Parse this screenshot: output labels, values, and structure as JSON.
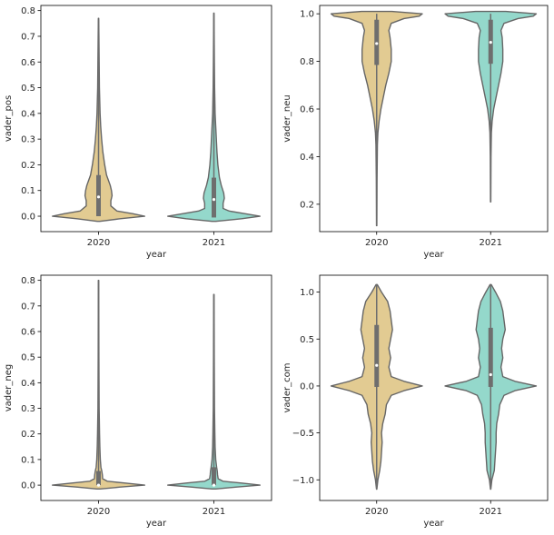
{
  "colors": {
    "series_2020": "#e2cb92",
    "series_2021": "#94d8cb",
    "outline": "#666666",
    "box": "#6e6e6e",
    "median": "#ffffff"
  },
  "chart_data": [
    {
      "type": "violin",
      "xlabel": "year",
      "ylabel": "vader_pos",
      "categories": [
        "2020",
        "2021"
      ],
      "ylim": [
        -0.06,
        0.82
      ],
      "yticks": [
        0.0,
        0.1,
        0.2,
        0.3,
        0.4,
        0.5,
        0.6,
        0.7,
        0.8
      ],
      "ytick_labels": [
        "0.0",
        "0.1",
        "0.2",
        "0.3",
        "0.4",
        "0.5",
        "0.6",
        "0.7",
        "0.8"
      ],
      "grid": false,
      "series": [
        {
          "category": "2020",
          "whisker": [
            0.0,
            0.765
          ],
          "box": {
            "q1": 0.0,
            "median": 0.075,
            "q3": 0.16
          },
          "extent": [
            -0.02,
            0.77
          ],
          "profile": [
            [
              -0.02,
              0.02
            ],
            [
              -0.01,
              0.35
            ],
            [
              0.0,
              0.75
            ],
            [
              0.01,
              0.55
            ],
            [
              0.02,
              0.3
            ],
            [
              0.04,
              0.2
            ],
            [
              0.06,
              0.2
            ],
            [
              0.08,
              0.22
            ],
            [
              0.1,
              0.21
            ],
            [
              0.12,
              0.19
            ],
            [
              0.14,
              0.16
            ],
            [
              0.16,
              0.13
            ],
            [
              0.2,
              0.1
            ],
            [
              0.25,
              0.07
            ],
            [
              0.3,
              0.05
            ],
            [
              0.35,
              0.035
            ],
            [
              0.4,
              0.025
            ],
            [
              0.5,
              0.014
            ],
            [
              0.6,
              0.01
            ],
            [
              0.7,
              0.006
            ],
            [
              0.77,
              0.003
            ]
          ]
        },
        {
          "category": "2021",
          "whisker": [
            0.0,
            0.785
          ],
          "box": {
            "q1": -0.005,
            "median": 0.065,
            "q3": 0.15
          },
          "extent": [
            -0.02,
            0.79
          ],
          "profile": [
            [
              -0.02,
              0.03
            ],
            [
              -0.01,
              0.45
            ],
            [
              0.0,
              0.75
            ],
            [
              0.01,
              0.5
            ],
            [
              0.02,
              0.25
            ],
            [
              0.03,
              0.15
            ],
            [
              0.05,
              0.15
            ],
            [
              0.07,
              0.17
            ],
            [
              0.09,
              0.16
            ],
            [
              0.12,
              0.12
            ],
            [
              0.15,
              0.09
            ],
            [
              0.2,
              0.065
            ],
            [
              0.25,
              0.05
            ],
            [
              0.3,
              0.04
            ],
            [
              0.35,
              0.03
            ],
            [
              0.4,
              0.02
            ],
            [
              0.5,
              0.012
            ],
            [
              0.6,
              0.008
            ],
            [
              0.7,
              0.005
            ],
            [
              0.79,
              0.003
            ]
          ]
        }
      ]
    },
    {
      "type": "violin",
      "xlabel": "year",
      "ylabel": "vader_neu",
      "categories": [
        "2020",
        "2021"
      ],
      "ylim": [
        0.085,
        1.035
      ],
      "yticks": [
        0.2,
        0.4,
        0.6,
        0.8,
        1.0
      ],
      "ytick_labels": [
        "0.2",
        "0.4",
        "0.6",
        "0.8",
        "1.0"
      ],
      "grid": false,
      "series": [
        {
          "category": "2020",
          "whisker": [
            0.11,
            1.0
          ],
          "box": {
            "q1": 0.785,
            "median": 0.875,
            "q3": 0.975
          },
          "extent": [
            0.11,
            1.01
          ],
          "profile": [
            [
              0.11,
              0.003
            ],
            [
              0.3,
              0.006
            ],
            [
              0.45,
              0.012
            ],
            [
              0.5,
              0.02
            ],
            [
              0.55,
              0.04
            ],
            [
              0.6,
              0.07
            ],
            [
              0.65,
              0.11
            ],
            [
              0.7,
              0.15
            ],
            [
              0.75,
              0.2
            ],
            [
              0.8,
              0.24
            ],
            [
              0.85,
              0.24
            ],
            [
              0.9,
              0.22
            ],
            [
              0.93,
              0.2
            ],
            [
              0.96,
              0.24
            ],
            [
              0.98,
              0.45
            ],
            [
              0.99,
              0.7
            ],
            [
              1.0,
              0.75
            ],
            [
              1.01,
              0.25
            ]
          ]
        },
        {
          "category": "2021",
          "whisker": [
            0.21,
            1.0
          ],
          "box": {
            "q1": 0.79,
            "median": 0.88,
            "q3": 0.975
          },
          "extent": [
            0.21,
            1.01
          ],
          "profile": [
            [
              0.21,
              0.003
            ],
            [
              0.4,
              0.006
            ],
            [
              0.5,
              0.012
            ],
            [
              0.55,
              0.025
            ],
            [
              0.6,
              0.05
            ],
            [
              0.65,
              0.09
            ],
            [
              0.7,
              0.13
            ],
            [
              0.75,
              0.17
            ],
            [
              0.8,
              0.2
            ],
            [
              0.85,
              0.2
            ],
            [
              0.9,
              0.19
            ],
            [
              0.93,
              0.17
            ],
            [
              0.96,
              0.22
            ],
            [
              0.98,
              0.45
            ],
            [
              0.99,
              0.7
            ],
            [
              1.0,
              0.75
            ],
            [
              1.01,
              0.25
            ]
          ]
        }
      ]
    },
    {
      "type": "violin",
      "xlabel": "year",
      "ylabel": "vader_neg",
      "categories": [
        "2020",
        "2021"
      ],
      "ylim": [
        -0.06,
        0.82
      ],
      "yticks": [
        0.0,
        0.1,
        0.2,
        0.3,
        0.4,
        0.5,
        0.6,
        0.7,
        0.8
      ],
      "ytick_labels": [
        "0.0",
        "0.1",
        "0.2",
        "0.3",
        "0.4",
        "0.5",
        "0.6",
        "0.7",
        "0.8"
      ],
      "grid": false,
      "series": [
        {
          "category": "2020",
          "whisker": [
            0.0,
            0.8
          ],
          "box": {
            "q1": 0.0,
            "median": 0.0,
            "q3": 0.055
          },
          "extent": [
            -0.015,
            0.8
          ],
          "profile": [
            [
              -0.015,
              0.03
            ],
            [
              -0.008,
              0.35
            ],
            [
              0.0,
              0.78
            ],
            [
              0.008,
              0.45
            ],
            [
              0.015,
              0.15
            ],
            [
              0.025,
              0.07
            ],
            [
              0.04,
              0.065
            ],
            [
              0.055,
              0.055
            ],
            [
              0.07,
              0.04
            ],
            [
              0.1,
              0.03
            ],
            [
              0.15,
              0.022
            ],
            [
              0.2,
              0.017
            ],
            [
              0.3,
              0.01
            ],
            [
              0.4,
              0.008
            ],
            [
              0.5,
              0.006
            ],
            [
              0.6,
              0.005
            ],
            [
              0.7,
              0.004
            ],
            [
              0.8,
              0.003
            ]
          ]
        },
        {
          "category": "2021",
          "whisker": [
            0.0,
            0.745
          ],
          "box": {
            "q1": 0.0,
            "median": 0.0,
            "q3": 0.07
          },
          "extent": [
            -0.015,
            0.745
          ],
          "profile": [
            [
              -0.015,
              0.03
            ],
            [
              -0.008,
              0.35
            ],
            [
              0.0,
              0.75
            ],
            [
              0.008,
              0.45
            ],
            [
              0.015,
              0.15
            ],
            [
              0.025,
              0.07
            ],
            [
              0.04,
              0.06
            ],
            [
              0.055,
              0.055
            ],
            [
              0.07,
              0.045
            ],
            [
              0.1,
              0.03
            ],
            [
              0.15,
              0.02
            ],
            [
              0.2,
              0.016
            ],
            [
              0.3,
              0.01
            ],
            [
              0.4,
              0.008
            ],
            [
              0.5,
              0.006
            ],
            [
              0.6,
              0.005
            ],
            [
              0.745,
              0.003
            ]
          ]
        }
      ]
    },
    {
      "type": "violin",
      "xlabel": "year",
      "ylabel": "vader_com",
      "categories": [
        "2020",
        "2021"
      ],
      "ylim": [
        -1.22,
        1.18
      ],
      "yticks": [
        -1.0,
        -0.5,
        0.0,
        0.5,
        1.0
      ],
      "ytick_labels": [
        "−1.0",
        "−0.5",
        "0.0",
        "0.5",
        "1.0"
      ],
      "grid": false,
      "series": [
        {
          "category": "2020",
          "whisker": [
            -1.1,
            1.08
          ],
          "box": {
            "q1": -0.01,
            "median": 0.22,
            "q3": 0.65
          },
          "extent": [
            -1.1,
            1.08
          ],
          "profile": [
            [
              -1.1,
              0.003
            ],
            [
              -1.0,
              0.02
            ],
            [
              -0.9,
              0.05
            ],
            [
              -0.8,
              0.07
            ],
            [
              -0.7,
              0.08
            ],
            [
              -0.6,
              0.09
            ],
            [
              -0.5,
              0.08
            ],
            [
              -0.4,
              0.1
            ],
            [
              -0.3,
              0.14
            ],
            [
              -0.2,
              0.16
            ],
            [
              -0.1,
              0.24
            ],
            [
              -0.05,
              0.45
            ],
            [
              0.0,
              0.75
            ],
            [
              0.05,
              0.45
            ],
            [
              0.1,
              0.24
            ],
            [
              0.2,
              0.2
            ],
            [
              0.3,
              0.23
            ],
            [
              0.4,
              0.2
            ],
            [
              0.5,
              0.23
            ],
            [
              0.6,
              0.26
            ],
            [
              0.7,
              0.24
            ],
            [
              0.8,
              0.22
            ],
            [
              0.9,
              0.18
            ],
            [
              1.0,
              0.08
            ],
            [
              1.08,
              0.01
            ]
          ]
        },
        {
          "category": "2021",
          "whisker": [
            -1.1,
            1.08
          ],
          "box": {
            "q1": -0.01,
            "median": 0.12,
            "q3": 0.62
          },
          "extent": [
            -1.1,
            1.08
          ],
          "profile": [
            [
              -1.1,
              0.003
            ],
            [
              -1.0,
              0.02
            ],
            [
              -0.9,
              0.06
            ],
            [
              -0.8,
              0.07
            ],
            [
              -0.7,
              0.08
            ],
            [
              -0.6,
              0.09
            ],
            [
              -0.5,
              0.09
            ],
            [
              -0.4,
              0.1
            ],
            [
              -0.3,
              0.13
            ],
            [
              -0.2,
              0.15
            ],
            [
              -0.1,
              0.22
            ],
            [
              -0.05,
              0.4
            ],
            [
              0.0,
              0.75
            ],
            [
              0.05,
              0.4
            ],
            [
              0.1,
              0.2
            ],
            [
              0.2,
              0.17
            ],
            [
              0.3,
              0.2
            ],
            [
              0.4,
              0.18
            ],
            [
              0.5,
              0.2
            ],
            [
              0.6,
              0.24
            ],
            [
              0.7,
              0.22
            ],
            [
              0.8,
              0.2
            ],
            [
              0.9,
              0.16
            ],
            [
              1.0,
              0.08
            ],
            [
              1.08,
              0.01
            ]
          ]
        }
      ]
    }
  ]
}
